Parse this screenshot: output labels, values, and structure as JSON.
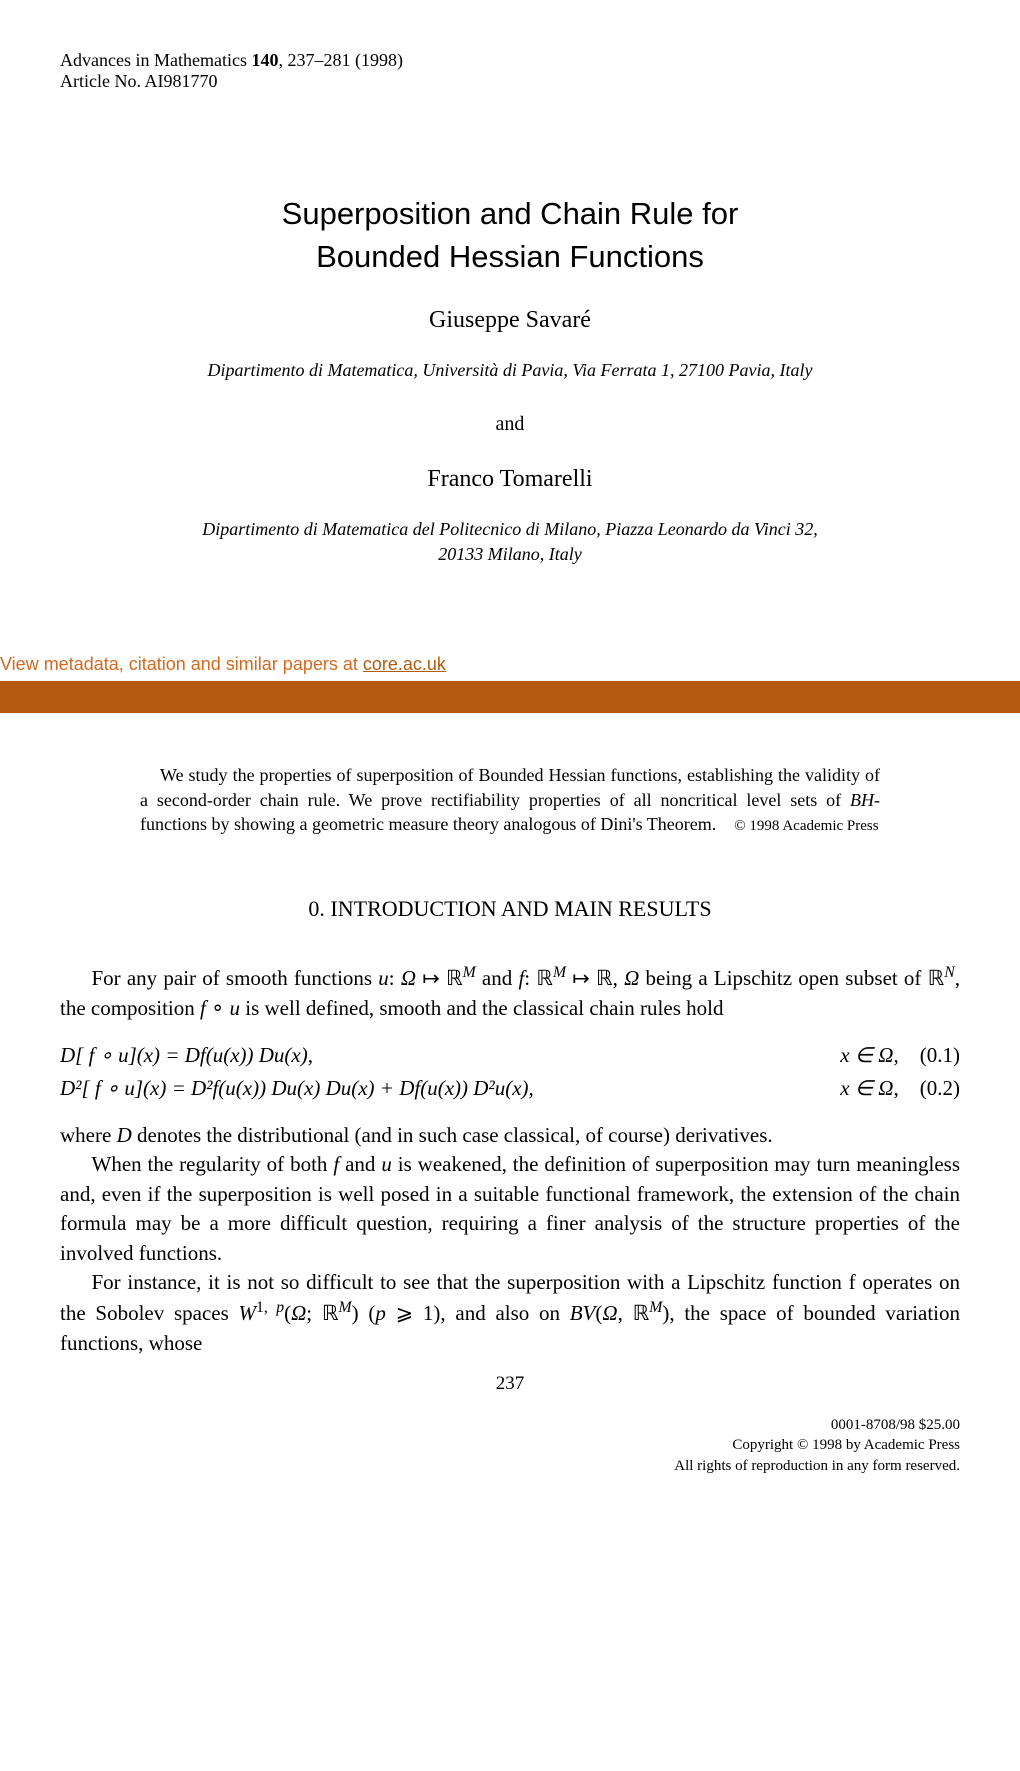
{
  "header": {
    "journal": "Advances in Mathematics",
    "volume": "140",
    "pages": "237–281 (1998)",
    "article_no": "Article No. AI981770"
  },
  "title": {
    "line1": "Superposition and Chain Rule for",
    "line2": "Bounded Hessian Functions"
  },
  "authors": {
    "author1": "Giuseppe Savaré",
    "affiliation1": "Dipartimento di Matematica, Università di Pavia, Via Ferrata 1, 27100 Pavia, Italy",
    "and": "and",
    "author2": "Franco Tomarelli",
    "affiliation2_line1": "Dipartimento di Matematica del Politecnico di Milano, Piazza Leonardo da Vinci 32,",
    "affiliation2_line2": "20133 Milano, Italy"
  },
  "banner": {
    "text_prefix": "View metadata, citation and similar papers at ",
    "link_text": "core.ac.uk",
    "banner_color": "#b35a0e",
    "text_color": "#d4691e"
  },
  "abstract": {
    "text": "We study the properties of superposition of Bounded Hessian functions, establishing the validity of a second-order chain rule. We prove rectifiability properties of all noncritical level sets of BH-functions by showing a geometric measure theory analogous of Dini's Theorem.",
    "copyright": "© 1998 Academic Press"
  },
  "section": {
    "heading": "0. INTRODUCTION AND MAIN RESULTS"
  },
  "body": {
    "para1_a": "For any pair of smooth functions ",
    "para1_b": " being a Lipschitz open subset of ",
    "para1_c": ", the composition ",
    "para1_d": " is well defined, smooth and the classical chain rules hold",
    "para2": "where D denotes the distributional (and in such case classical, of course) derivatives.",
    "para3": "When the regularity of both f and u is weakened, the definition of superposition may turn meaningless and, even if the superposition is well posed in a suitable functional framework, the extension of the chain formula may be a more difficult question, requiring a finer analysis of the structure properties of the involved functions.",
    "para4_a": "For instance, it is not so difficult to see that the superposition with a Lipschitz function f operates on the Sobolev spaces ",
    "para4_b": ", and also on ",
    "para4_c": ", the space of bounded variation functions, whose"
  },
  "equations": {
    "eq1_lhs": "D[ f ∘ u](x) = Df(u(x)) Du(x),",
    "eq1_rhs_cond": "x ∈ Ω,",
    "eq1_num": "(0.1)",
    "eq2_lhs": "D²[ f ∘ u](x) = D²f(u(x)) Du(x) Du(x) + Df(u(x)) D²u(x),",
    "eq2_rhs_cond": "x ∈ Ω,",
    "eq2_num": "(0.2)"
  },
  "page_number": "237",
  "footer": {
    "issn": "0001-8708/98 $25.00",
    "copyright1": "Copyright © 1998 by Academic Press",
    "copyright2": "All rights of reproduction in any form reserved."
  }
}
